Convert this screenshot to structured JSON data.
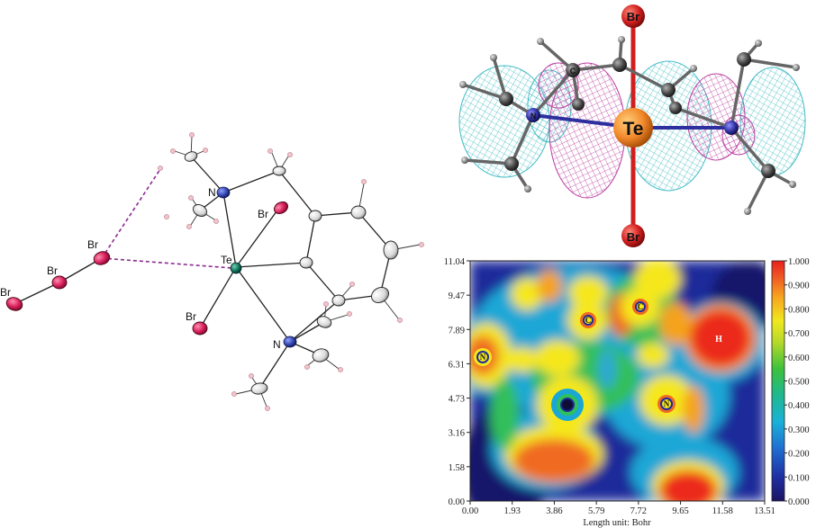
{
  "structure_panel": {
    "atom_labels": [
      {
        "id": "br1",
        "text": "Br"
      },
      {
        "id": "br2",
        "text": "Br"
      },
      {
        "id": "br3",
        "text": "Br"
      },
      {
        "id": "br4",
        "text": "Br"
      },
      {
        "id": "br5",
        "text": "Br"
      },
      {
        "id": "te",
        "text": "Te"
      },
      {
        "id": "n1",
        "text": "N"
      },
      {
        "id": "n2",
        "text": "N"
      }
    ]
  },
  "orbital_panel": {
    "top_label": "Br",
    "center_label": "Te",
    "bottom_label": "Br",
    "carbon_label": "C",
    "nitrogen_label": "N",
    "lobe_colors": {
      "positive": "#39b9c3",
      "negative": "#b8339a"
    },
    "atom_colors": {
      "te": "#f2872a",
      "br": "#d11f1f",
      "n": "#2e2f9e",
      "c": "#454545",
      "h": "#8f8f8f"
    }
  },
  "elf_map": {
    "x_ticks": [
      "0.00",
      "1.93",
      "3.86",
      "5.79",
      "7.72",
      "9.65",
      "11.58",
      "13.51"
    ],
    "y_ticks": [
      "0.00",
      "1.58",
      "3.16",
      "4.73",
      "6.31",
      "7.89",
      "9.47",
      "11.04"
    ],
    "x_axis_label": "Length unit: Bohr",
    "colorbar_ticks": [
      "0.000",
      "0.100",
      "0.200",
      "0.300",
      "0.400",
      "0.500",
      "0.600",
      "0.700",
      "0.800",
      "0.900",
      "1.000"
    ],
    "colorbar_range": [
      0.0,
      1.0
    ],
    "atom_markers": [
      {
        "label": "N"
      },
      {
        "label": "C"
      },
      {
        "label": "C"
      },
      {
        "label": "H"
      },
      {
        "label": "Te"
      },
      {
        "label": "N"
      }
    ]
  }
}
